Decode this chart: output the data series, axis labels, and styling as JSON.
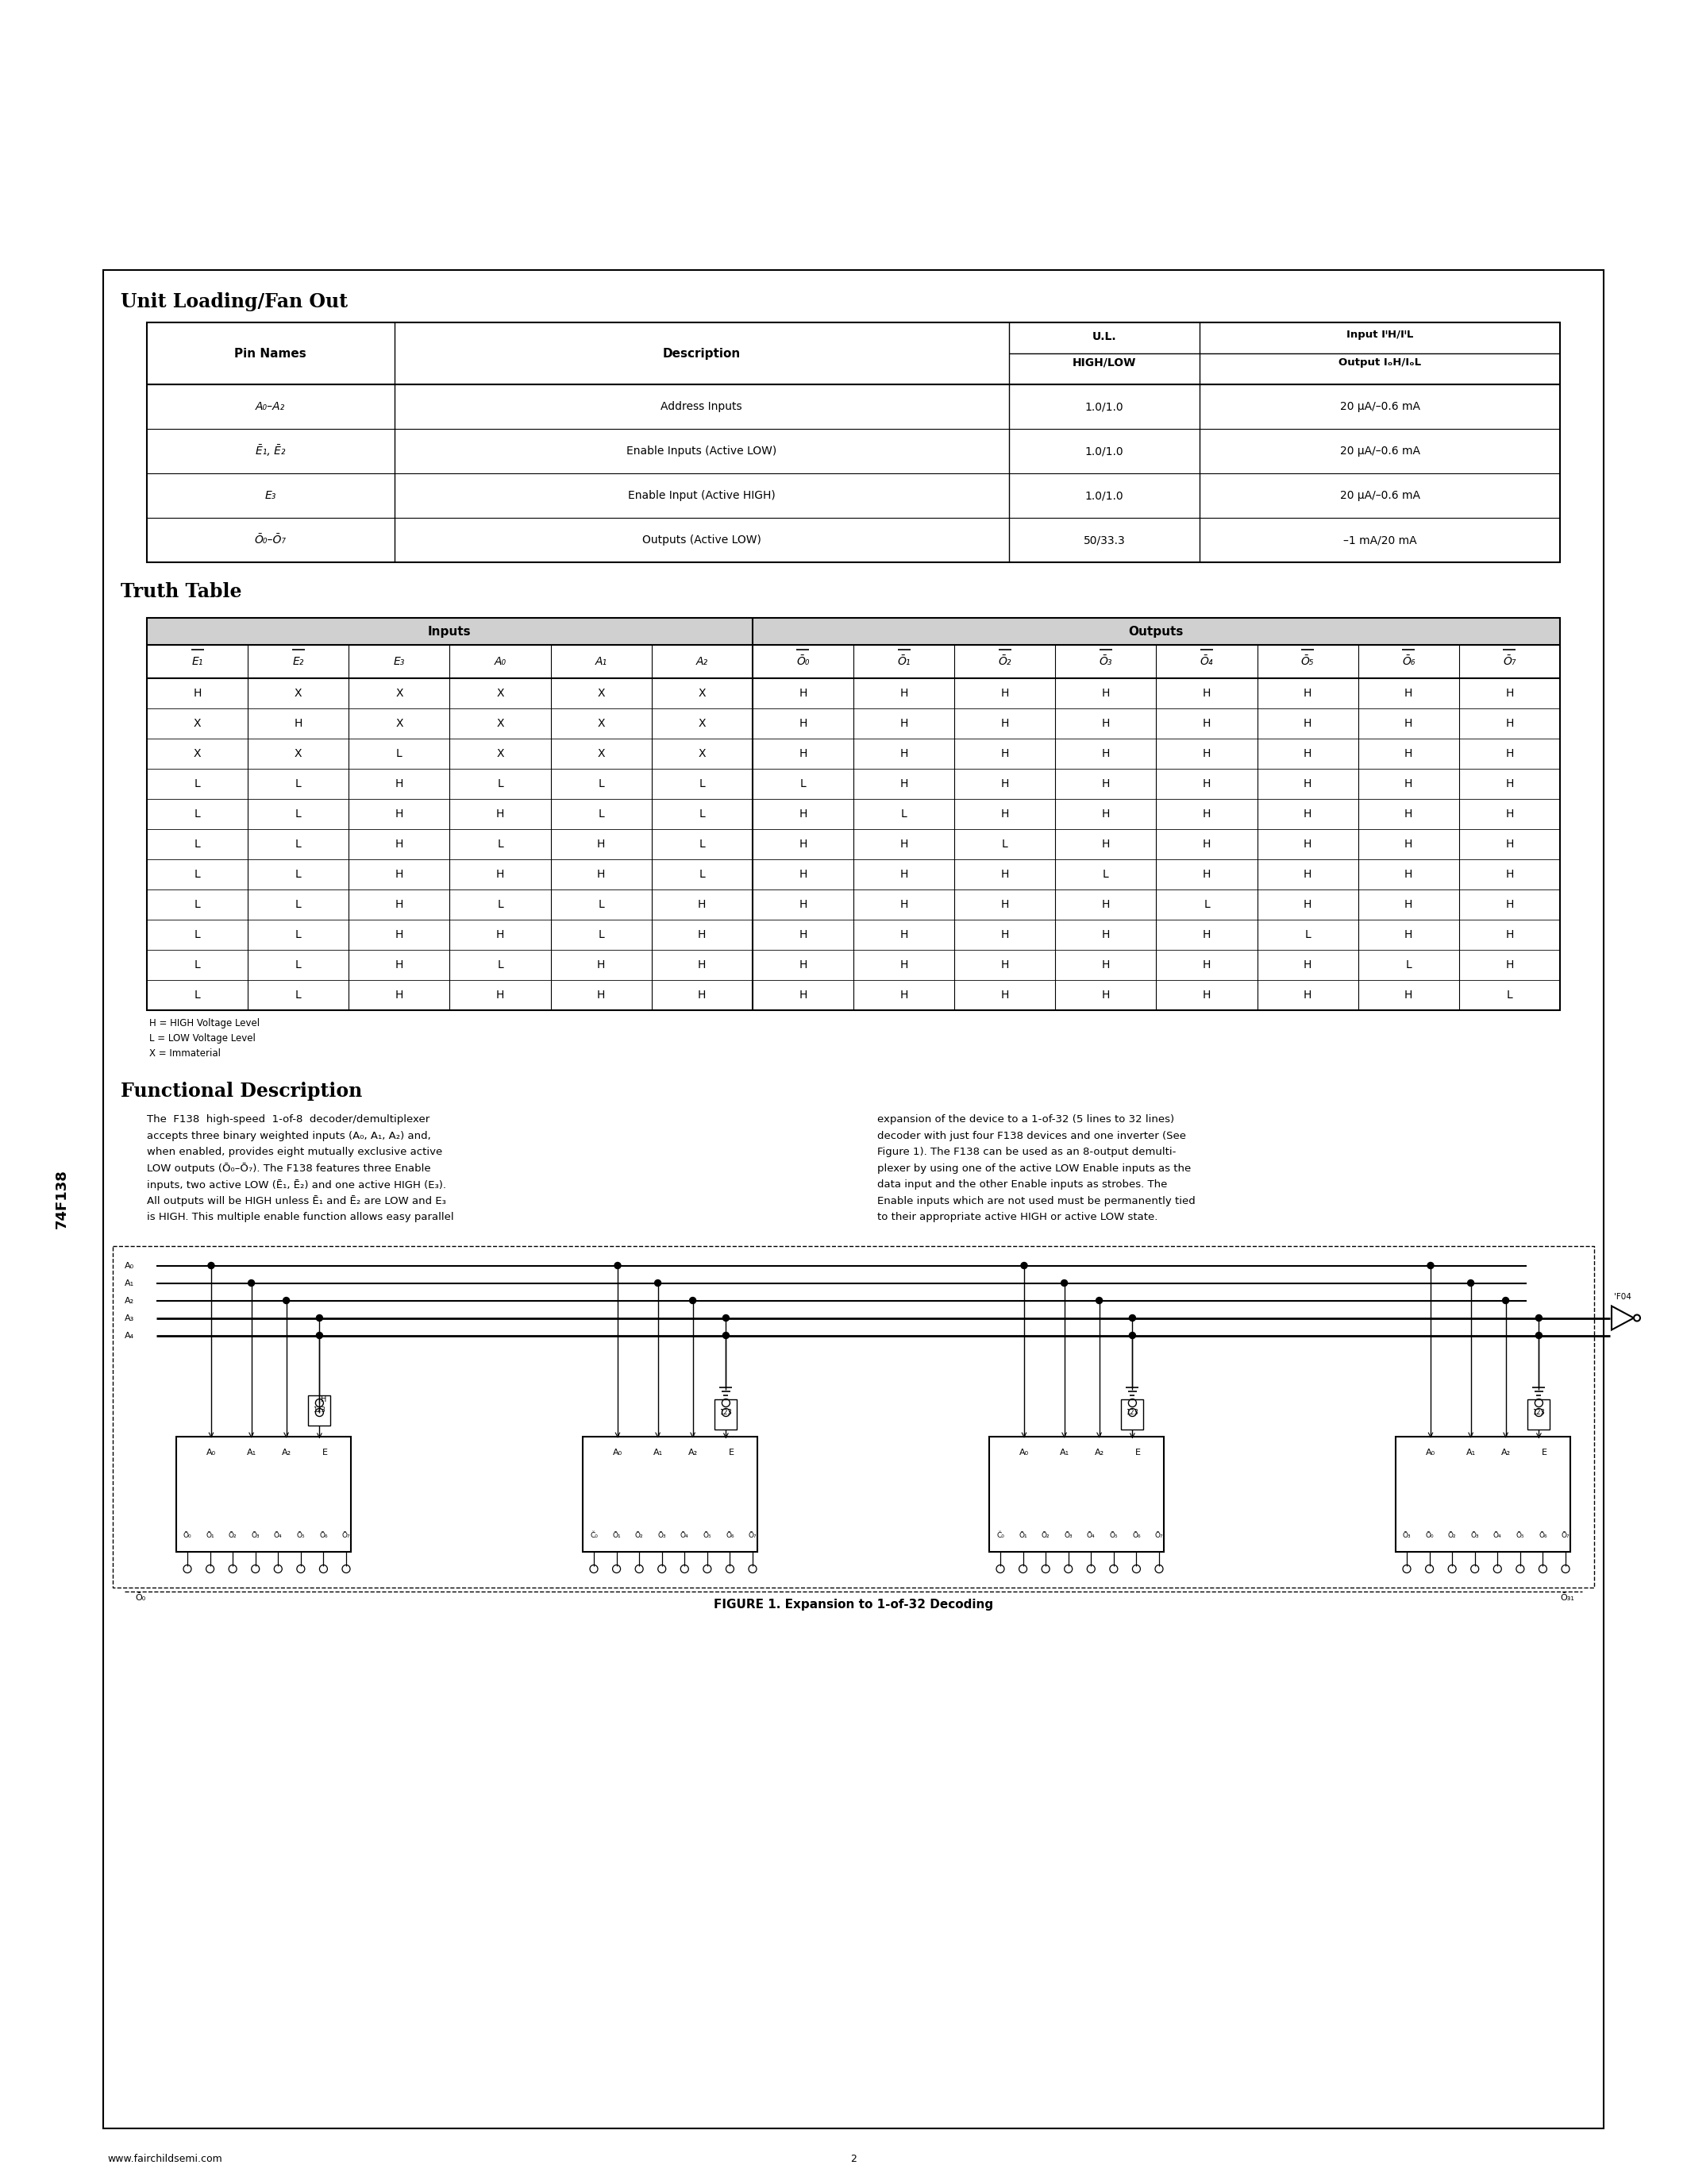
{
  "page_bg": "#ffffff",
  "title_chip": "74F138",
  "section1_title": "Unit Loading/Fan Out",
  "section2_title": "Truth Table",
  "section3_title": "Functional Description",
  "ul_table_rows": [
    [
      "A₀–A₂",
      "Address Inputs",
      "1.0/1.0",
      "20 μA/–0.6 mA"
    ],
    [
      "Ē₁, Ē₂",
      "Enable Inputs (Active LOW)",
      "1.0/1.0",
      "20 μA/–0.6 mA"
    ],
    [
      "E₃",
      "Enable Input (Active HIGH)",
      "1.0/1.0",
      "20 μA/–0.6 mA"
    ],
    [
      "Ō₀–Ō₇",
      "Outputs (Active LOW)",
      "50/33.3",
      "–1 mA/20 mA"
    ]
  ],
  "truth_table_col_headers": [
    "E₁",
    "E₂",
    "E₃",
    "A₀",
    "A₁",
    "A₂",
    "Ō₀",
    "Ō₁",
    "Ō₂",
    "Ō₃",
    "Ō₄",
    "Ō₅",
    "Ō₆",
    "Ō₇"
  ],
  "truth_table_col_bars": [
    true,
    true,
    false,
    false,
    false,
    false,
    true,
    true,
    true,
    true,
    true,
    true,
    true,
    true
  ],
  "truth_table_rows": [
    [
      "H",
      "X",
      "X",
      "X",
      "X",
      "X",
      "H",
      "H",
      "H",
      "H",
      "H",
      "H",
      "H",
      "H"
    ],
    [
      "X",
      "H",
      "X",
      "X",
      "X",
      "X",
      "H",
      "H",
      "H",
      "H",
      "H",
      "H",
      "H",
      "H"
    ],
    [
      "X",
      "X",
      "L",
      "X",
      "X",
      "X",
      "H",
      "H",
      "H",
      "H",
      "H",
      "H",
      "H",
      "H"
    ],
    [
      "L",
      "L",
      "H",
      "L",
      "L",
      "L",
      "L",
      "H",
      "H",
      "H",
      "H",
      "H",
      "H",
      "H"
    ],
    [
      "L",
      "L",
      "H",
      "H",
      "L",
      "L",
      "H",
      "L",
      "H",
      "H",
      "H",
      "H",
      "H",
      "H"
    ],
    [
      "L",
      "L",
      "H",
      "L",
      "H",
      "L",
      "H",
      "H",
      "L",
      "H",
      "H",
      "H",
      "H",
      "H"
    ],
    [
      "L",
      "L",
      "H",
      "H",
      "H",
      "L",
      "H",
      "H",
      "H",
      "L",
      "H",
      "H",
      "H",
      "H"
    ],
    [
      "L",
      "L",
      "H",
      "L",
      "L",
      "H",
      "H",
      "H",
      "H",
      "H",
      "L",
      "H",
      "H",
      "H"
    ],
    [
      "L",
      "L",
      "H",
      "H",
      "L",
      "H",
      "H",
      "H",
      "H",
      "H",
      "H",
      "L",
      "H",
      "H"
    ],
    [
      "L",
      "L",
      "H",
      "L",
      "H",
      "H",
      "H",
      "H",
      "H",
      "H",
      "H",
      "H",
      "L",
      "H"
    ],
    [
      "L",
      "L",
      "H",
      "H",
      "H",
      "H",
      "H",
      "H",
      "H",
      "H",
      "H",
      "H",
      "H",
      "L"
    ]
  ],
  "legend_lines": [
    "H = HIGH Voltage Level",
    "L = LOW Voltage Level",
    "X = Immaterial"
  ],
  "func_desc_left": "The  F138  high-speed  1-of-8  decoder/demultiplexer\naccepts three binary weighted inputs (A₀, A₁, A₂) and,\nwhen enabled, provides eight mutually exclusive active\nLOW outputs (Ō₀–Ō₇). The F138 features three Enable\ninputs, two active LOW (Ē₁, Ē₂) and one active HIGH (E₃).\nAll outputs will be HIGH unless Ē₁ and Ē₂ are LOW and E₃\nis HIGH. This multiple enable function allows easy parallel",
  "func_desc_right": "expansion of the device to a 1-of-32 (5 lines to 32 lines)\ndecoder with just four F138 devices and one inverter (See\nFigure 1). The F138 can be used as an 8-output demulti-\nplexer by using one of the active LOW Enable inputs as the\ndata input and the other Enable inputs as strobes. The\nEnable inputs which are not used must be permanently tied\nto their appropriate active HIGH or active LOW state.",
  "figure_caption": "FIGURE 1. Expansion to 1-of-32 Decoding",
  "footer_url": "www.fairchildsemi.com",
  "footer_page": "2",
  "CL": 130,
  "CR": 2020,
  "CT": 340,
  "CB": 2680
}
